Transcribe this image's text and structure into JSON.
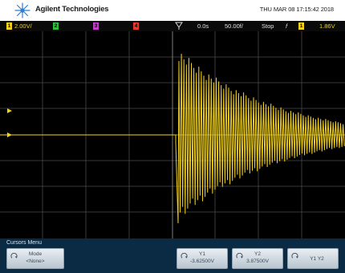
{
  "header": {
    "brand": "Agilent Technologies",
    "datetime": "THU MAR 08 17:15:42 2018",
    "logo_icon": "agilent-spark-icon"
  },
  "status_bar": {
    "ch1_scale": "2.00V/",
    "ch1_label": "1",
    "ch2_label": "2",
    "ch3_label": "3",
    "ch4_label": "4",
    "time_delay": "0.0s",
    "time_scale": "50.00f/",
    "run_state": "Stop",
    "trigger_slope_symbol": "f",
    "trigger_channel": "1",
    "trigger_level": "1.86V",
    "colors": {
      "ch1": "#f3d21b",
      "ch2": "#2fbf3a",
      "ch3": "#c43cc9",
      "ch4": "#e53b2f",
      "accent": "#3d86d6"
    }
  },
  "trace": {
    "color": "#f3d21b",
    "description_free": true
  },
  "menu": {
    "title": "Cursors Menu",
    "softkeys": [
      {
        "name": "mode",
        "label": "Mode",
        "value": "<None>"
      },
      {
        "name": "y1",
        "label": "Y1",
        "value": "-3.62500V"
      },
      {
        "name": "y2",
        "label": "Y2",
        "value": "3.87500V"
      },
      {
        "name": "y1y2",
        "label": "Y1 Y2",
        "value": ""
      }
    ]
  }
}
